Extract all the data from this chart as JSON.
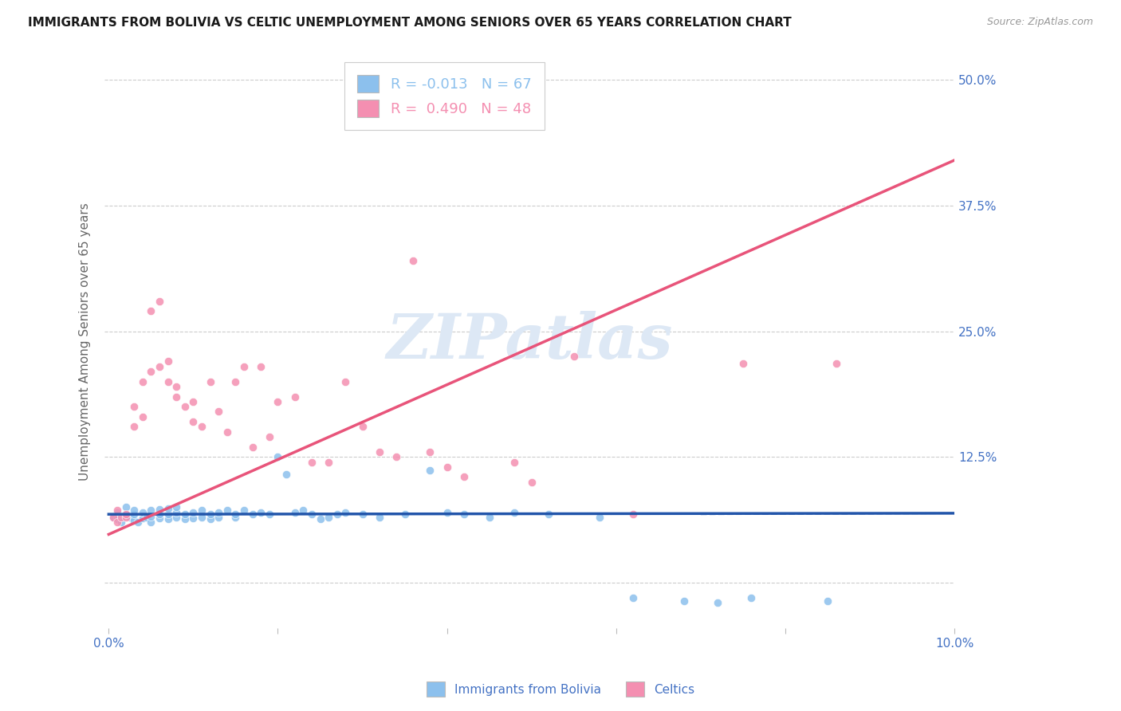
{
  "title": "IMMIGRANTS FROM BOLIVIA VS CELTIC UNEMPLOYMENT AMONG SENIORS OVER 65 YEARS CORRELATION CHART",
  "source": "Source: ZipAtlas.com",
  "ylabel": "Unemployment Among Seniors over 65 years",
  "xmin": 0.0,
  "xmax": 0.1,
  "ymin": -0.045,
  "ymax": 0.525,
  "ytick_positions": [
    0.0,
    0.125,
    0.25,
    0.375,
    0.5
  ],
  "ytick_labels": [
    "",
    "12.5%",
    "25.0%",
    "37.5%",
    "50.0%"
  ],
  "xtick_positions": [
    0.0,
    0.02,
    0.04,
    0.06,
    0.08,
    0.1
  ],
  "xtick_labels": [
    "0.0%",
    "",
    "",
    "",
    "",
    "10.0%"
  ],
  "bolivia_R": -0.013,
  "bolivia_N": 67,
  "celtics_R": 0.49,
  "celtics_N": 48,
  "bolivia_dot_color": "#8cc0ed",
  "celtics_dot_color": "#f48fb1",
  "bolivia_line_color": "#2255aa",
  "celtics_line_color": "#e8547a",
  "background_color": "#ffffff",
  "grid_color": "#cccccc",
  "title_color": "#1a1a1a",
  "axis_label_color": "#666666",
  "tick_color_y": "#4472c4",
  "tick_color_x": "#4472c4",
  "watermark_color": "#dde8f5",
  "legend_label1": "Immigrants from Bolivia",
  "legend_label2": "Celtics",
  "bolivia_line_y0": 0.068,
  "bolivia_line_y1": 0.069,
  "celtics_line_y0": 0.048,
  "celtics_line_y1": 0.42,
  "bolivia_x": [
    0.0005,
    0.001,
    0.001,
    0.0015,
    0.002,
    0.002,
    0.0025,
    0.003,
    0.003,
    0.003,
    0.0035,
    0.004,
    0.004,
    0.0045,
    0.005,
    0.005,
    0.005,
    0.006,
    0.006,
    0.006,
    0.007,
    0.007,
    0.007,
    0.008,
    0.008,
    0.008,
    0.009,
    0.009,
    0.01,
    0.01,
    0.011,
    0.011,
    0.012,
    0.012,
    0.013,
    0.013,
    0.014,
    0.015,
    0.015,
    0.016,
    0.017,
    0.018,
    0.019,
    0.02,
    0.021,
    0.022,
    0.023,
    0.024,
    0.025,
    0.026,
    0.027,
    0.028,
    0.03,
    0.032,
    0.035,
    0.038,
    0.04,
    0.042,
    0.045,
    0.048,
    0.052,
    0.058,
    0.062,
    0.068,
    0.072,
    0.076,
    0.085
  ],
  "bolivia_y": [
    0.065,
    0.063,
    0.07,
    0.06,
    0.068,
    0.075,
    0.065,
    0.062,
    0.068,
    0.072,
    0.06,
    0.064,
    0.07,
    0.065,
    0.06,
    0.066,
    0.072,
    0.064,
    0.068,
    0.073,
    0.063,
    0.068,
    0.074,
    0.065,
    0.07,
    0.075,
    0.063,
    0.068,
    0.064,
    0.07,
    0.065,
    0.072,
    0.063,
    0.068,
    0.065,
    0.07,
    0.072,
    0.065,
    0.068,
    0.072,
    0.068,
    0.07,
    0.068,
    0.125,
    0.108,
    0.07,
    0.072,
    0.068,
    0.063,
    0.065,
    0.068,
    0.07,
    0.068,
    0.065,
    0.068,
    0.112,
    0.07,
    0.068,
    0.065,
    0.07,
    0.068,
    0.065,
    -0.015,
    -0.018,
    -0.02,
    -0.015,
    -0.018
  ],
  "celtics_x": [
    0.0005,
    0.001,
    0.001,
    0.0015,
    0.002,
    0.002,
    0.003,
    0.003,
    0.004,
    0.004,
    0.005,
    0.005,
    0.006,
    0.006,
    0.007,
    0.007,
    0.008,
    0.008,
    0.009,
    0.01,
    0.01,
    0.011,
    0.012,
    0.013,
    0.014,
    0.015,
    0.016,
    0.017,
    0.018,
    0.019,
    0.02,
    0.022,
    0.024,
    0.026,
    0.028,
    0.03,
    0.032,
    0.034,
    0.036,
    0.038,
    0.04,
    0.042,
    0.048,
    0.05,
    0.055,
    0.062,
    0.075,
    0.086
  ],
  "celtics_y": [
    0.065,
    0.06,
    0.072,
    0.065,
    0.065,
    0.068,
    0.155,
    0.175,
    0.165,
    0.2,
    0.21,
    0.27,
    0.28,
    0.215,
    0.2,
    0.22,
    0.195,
    0.185,
    0.175,
    0.16,
    0.18,
    0.155,
    0.2,
    0.17,
    0.15,
    0.2,
    0.215,
    0.135,
    0.215,
    0.145,
    0.18,
    0.185,
    0.12,
    0.12,
    0.2,
    0.155,
    0.13,
    0.125,
    0.32,
    0.13,
    0.115,
    0.105,
    0.12,
    0.1,
    0.225,
    0.068,
    0.218,
    0.218
  ]
}
